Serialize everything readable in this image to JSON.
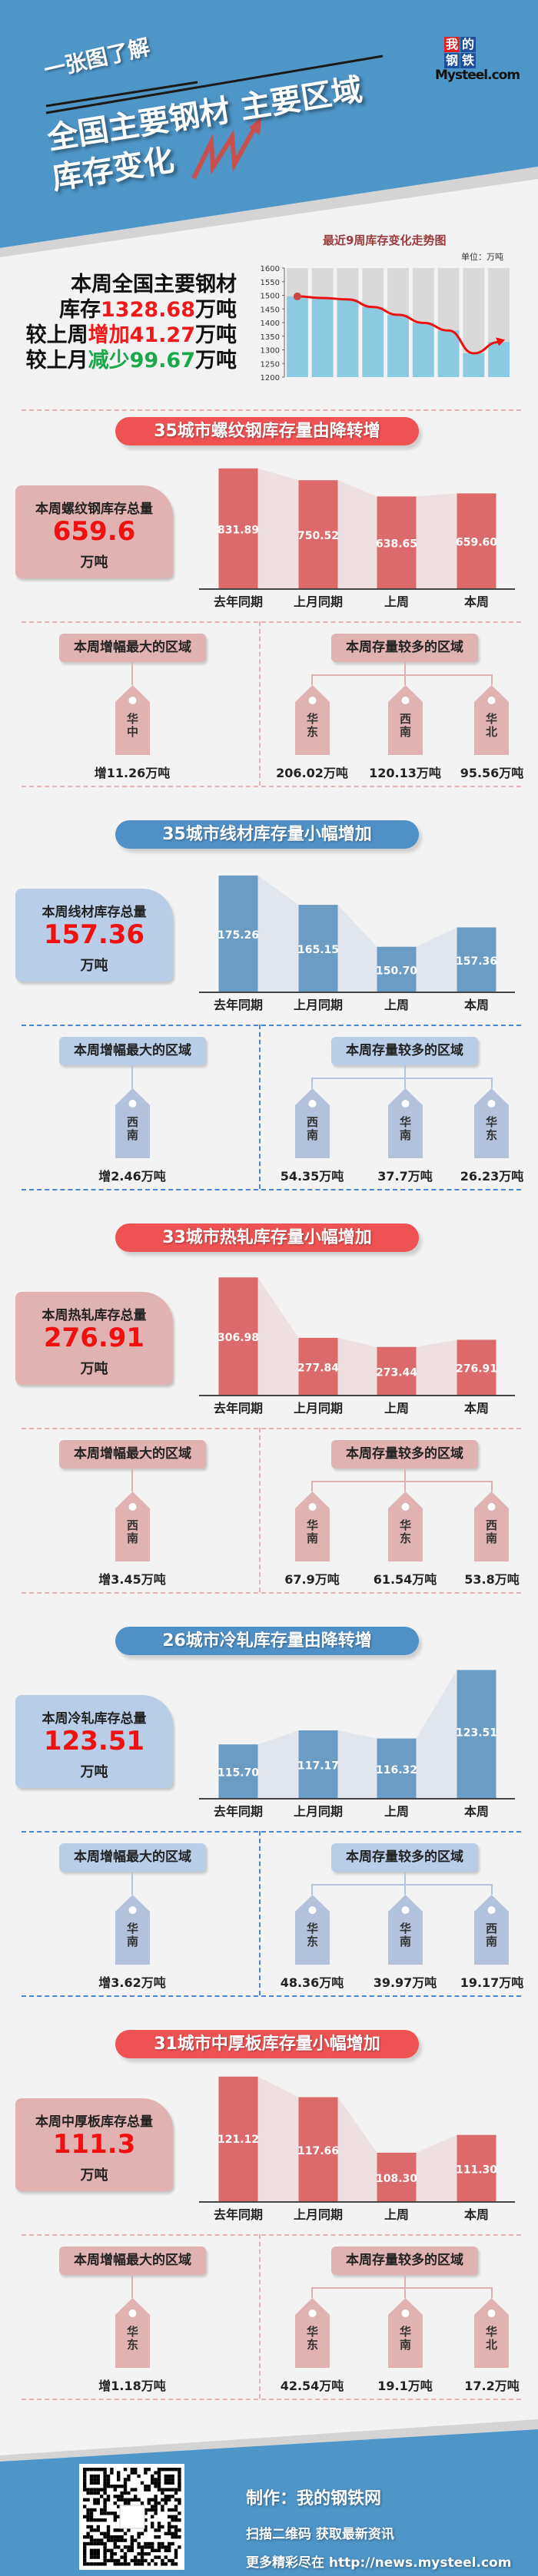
{
  "header": {
    "kicker": "一张图了解",
    "title_line1": "全国主要钢材 主要区域",
    "title_line2": "库存变化",
    "logo_chars": [
      "我",
      "的",
      "钢",
      "铁"
    ],
    "logo_brand": "Mysteel.com"
  },
  "summary": {
    "line1": "本周全国主要钢材",
    "line2_prefix": "库存",
    "line2_value": "1328.68",
    "line2_suffix": "万吨",
    "line3_prefix": "较上周",
    "line3_value": "增加41.27",
    "line3_suffix": "万吨",
    "line4_prefix": "较上月",
    "line4_value": "减少99.67",
    "line4_suffix": "万吨"
  },
  "colors": {
    "header_blue": "#4e95c8",
    "red_pill": "#ef5252",
    "blue_pill": "#4f90c6",
    "red_box": "#e0b2b2",
    "blue_box": "#b9cde6",
    "red_bar": "#dc6a6a",
    "blue_bar": "#6a9cc4",
    "increase": "#f01818",
    "decrease": "#1aa84a"
  },
  "chart_data": [
    {
      "type": "bar",
      "title": "最近9周库存变化走势图",
      "unit_label": "单位：万吨",
      "values": [
        1496,
        1490,
        1485,
        1457,
        1428.35,
        1399,
        1371,
        1287.41,
        1328.68
      ],
      "ylim": [
        1200,
        1600
      ],
      "yticks": [
        "1200",
        "1250",
        "1300",
        "1350",
        "1400",
        "1450",
        "1500",
        "1550",
        "1600"
      ],
      "trend_line": true,
      "grid": false
    },
    {
      "type": "bar",
      "categories": [
        "去年同期",
        "上月同期",
        "上周",
        "本周"
      ],
      "values": [
        831.89,
        750.52,
        638.65,
        659.6
      ],
      "labels": [
        "831.89",
        "750.52",
        "638.65",
        "659.60"
      ],
      "ylim": [
        0,
        900
      ]
    },
    {
      "type": "bar",
      "categories": [
        "去年同期",
        "上月同期",
        "上周",
        "本周"
      ],
      "values": [
        175.26,
        165.15,
        150.7,
        157.36
      ],
      "labels": [
        "175.26",
        "165.15",
        "150.70",
        "157.36"
      ],
      "ylim": [
        135,
        180
      ]
    },
    {
      "type": "bar",
      "categories": [
        "去年同期",
        "上月同期",
        "上周",
        "本周"
      ],
      "values": [
        306.98,
        277.84,
        273.44,
        276.91
      ],
      "labels": [
        "306.98",
        "277.84",
        "273.44",
        "276.91"
      ],
      "ylim": [
        250,
        313
      ]
    },
    {
      "type": "bar",
      "categories": [
        "去年同期",
        "上月同期",
        "上周",
        "本周"
      ],
      "values": [
        115.7,
        117.17,
        116.32,
        123.51
      ],
      "labels": [
        "115.70",
        "117.17",
        "116.32",
        "123.51"
      ],
      "ylim": [
        110,
        123.7
      ]
    },
    {
      "type": "bar",
      "categories": [
        "去年同期",
        "上月同期",
        "上周",
        "本周"
      ],
      "values": [
        121.12,
        117.66,
        108.3,
        111.3
      ],
      "labels": [
        "121.12",
        "117.66",
        "108.30",
        "111.30"
      ],
      "ylim": [
        100,
        122
      ]
    }
  ],
  "sections": [
    {
      "theme": "red",
      "title": "35城市螺纹钢库存量由降转增",
      "summary_label": "本周螺纹钢库存总量",
      "summary_value": "659.6",
      "summary_unit": "万吨",
      "left_header": "本周增幅最大的区域",
      "right_header": "本周存量较多的区域",
      "top_increase": {
        "region": "华中",
        "value": "增11.26万吨"
      },
      "top_stock": [
        {
          "region": "华东",
          "value": "206.02万吨"
        },
        {
          "region": "西南",
          "value": "120.13万吨"
        },
        {
          "region": "华北",
          "value": "95.56万吨"
        }
      ]
    },
    {
      "theme": "blue",
      "title": "35城市线材库存量小幅增加",
      "summary_label": "本周线材库存总量",
      "summary_value": "157.36",
      "summary_unit": "万吨",
      "left_header": "本周增幅最大的区域",
      "right_header": "本周存量较多的区域",
      "top_increase": {
        "region": "西南",
        "value": "增2.46万吨"
      },
      "top_stock": [
        {
          "region": "西南",
          "value": "54.35万吨"
        },
        {
          "region": "华南",
          "value": "37.7万吨"
        },
        {
          "region": "华东",
          "value": "26.23万吨"
        }
      ]
    },
    {
      "theme": "red",
      "title": "33城市热轧库存量小幅增加",
      "summary_label": "本周热轧库存总量",
      "summary_value": "276.91",
      "summary_unit": "万吨",
      "left_header": "本周增幅最大的区域",
      "right_header": "本周存量较多的区域",
      "top_increase": {
        "region": "西南",
        "value": "增3.45万吨"
      },
      "top_stock": [
        {
          "region": "华南",
          "value": "67.9万吨"
        },
        {
          "region": "华东",
          "value": "61.54万吨"
        },
        {
          "region": "西南",
          "value": "53.8万吨"
        }
      ]
    },
    {
      "theme": "blue",
      "title": "26城市冷轧库存量由降转增",
      "summary_label": "本周冷轧库存总量",
      "summary_value": "123.51",
      "summary_unit": "万吨",
      "left_header": "本周增幅最大的区域",
      "right_header": "本周存量较多的区域",
      "top_increase": {
        "region": "华南",
        "value": "增3.62万吨"
      },
      "top_stock": [
        {
          "region": "华东",
          "value": "48.36万吨"
        },
        {
          "region": "华南",
          "value": "39.97万吨"
        },
        {
          "region": "西南",
          "value": "19.17万吨"
        }
      ]
    },
    {
      "theme": "red",
      "title": "31城市中厚板库存量小幅增加",
      "summary_label": "本周中厚板库存总量",
      "summary_value": "111.3",
      "summary_unit": "万吨",
      "left_header": "本周增幅最大的区域",
      "right_header": "本周存量较多的区域",
      "top_increase": {
        "region": "华东",
        "value": "增1.18万吨"
      },
      "top_stock": [
        {
          "region": "华东",
          "value": "42.54万吨"
        },
        {
          "region": "华南",
          "value": "19.1万吨"
        },
        {
          "region": "华北",
          "value": "17.2万吨"
        }
      ]
    }
  ],
  "footer": {
    "maker": "制作：我的钢铁网",
    "scan_text": "扫描二维码 获取最新资讯",
    "more_text": "更多精彩尽在 http://news.mysteel.com"
  }
}
